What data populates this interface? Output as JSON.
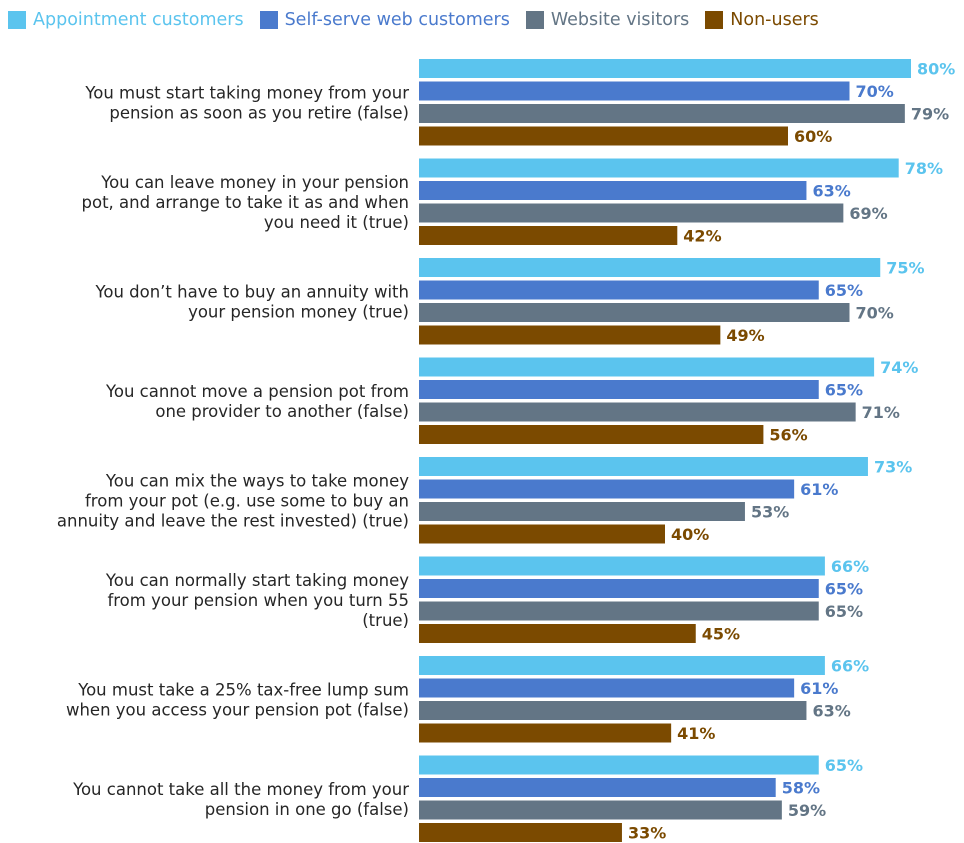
{
  "chart_data": {
    "type": "bar",
    "orientation": "horizontal",
    "categories": [
      [
        "You must start taking money from your",
        "pension as soon as you retire (false)"
      ],
      [
        "You can leave money in your pension",
        "pot, and arrange to take it as and when",
        "you need it (true)"
      ],
      [
        "You don’t have to buy an annuity with",
        "your pension money (true)"
      ],
      [
        "You cannot move a pension pot from",
        "one provider to another (false)"
      ],
      [
        "You can mix the ways to take money",
        "from your pot (e.g. use some to buy an",
        "annuity and leave the rest invested) (true)"
      ],
      [
        "You can normally start taking money",
        "from your pension when you turn 55",
        "(true)"
      ],
      [
        "You must take a 25% tax-free lump sum",
        "when you access your pension pot (false)"
      ],
      [
        "You cannot take all the money from your",
        "pension in one go (false)"
      ]
    ],
    "series": [
      {
        "name": "Appointment customers",
        "color": "#5BC4EE",
        "values": [
          80,
          78,
          75,
          74,
          73,
          66,
          66,
          65
        ]
      },
      {
        "name": "Self-serve web customers",
        "color": "#4A7ACD",
        "values": [
          70,
          63,
          65,
          65,
          61,
          65,
          61,
          58
        ]
      },
      {
        "name": "Website visitors",
        "color": "#637585",
        "values": [
          79,
          69,
          70,
          71,
          53,
          65,
          63,
          59
        ]
      },
      {
        "name": "Non-users",
        "color": "#7B4A00",
        "values": [
          60,
          42,
          49,
          56,
          40,
          45,
          41,
          33
        ]
      }
    ],
    "value_suffix": "%",
    "xlim": [
      0,
      80
    ],
    "legend_position": "top",
    "grid": false
  }
}
